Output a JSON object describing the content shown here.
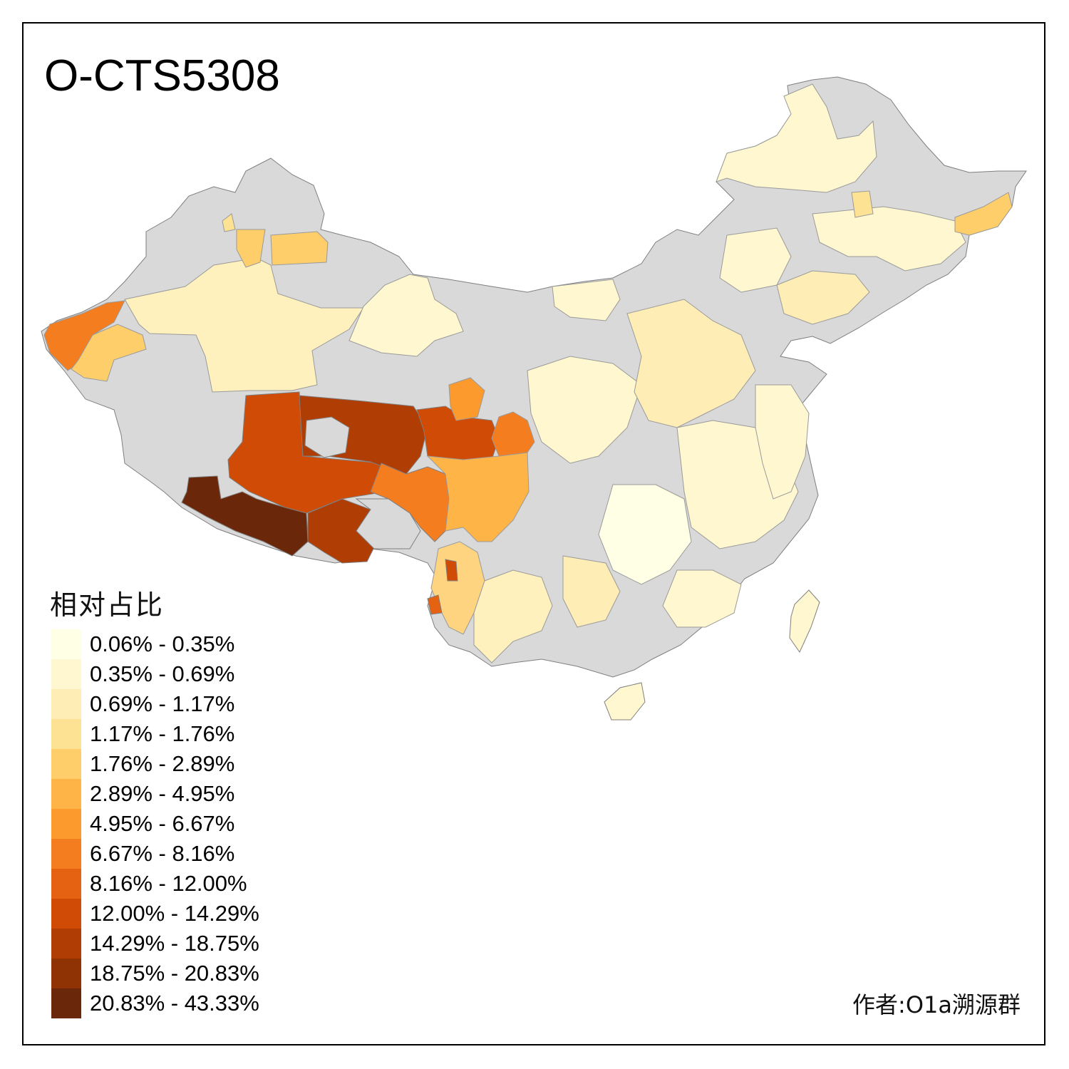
{
  "title": "O-CTS5308",
  "legend": {
    "title": "相对占比",
    "items": [
      {
        "label": "0.06% - 0.35%",
        "color": "#ffffe5"
      },
      {
        "label": "0.35% - 0.69%",
        "color": "#fff7cf"
      },
      {
        "label": "0.69% - 1.17%",
        "color": "#ffedb6"
      },
      {
        "label": "1.17% - 1.76%",
        "color": "#fee293"
      },
      {
        "label": "1.76% - 2.89%",
        "color": "#fece6a"
      },
      {
        "label": "2.89% - 4.95%",
        "color": "#feb447"
      },
      {
        "label": "4.95% - 6.67%",
        "color": "#fd9a2e"
      },
      {
        "label": "6.67% - 8.16%",
        "color": "#f47d20"
      },
      {
        "label": "8.16% - 12.00%",
        "color": "#e66213"
      },
      {
        "label": "12.00% - 14.29%",
        "color": "#cf4b06"
      },
      {
        "label": "14.29% - 18.75%",
        "color": "#b03d04"
      },
      {
        "label": "18.75% - 20.83%",
        "color": "#8f3204"
      },
      {
        "label": "20.83% - 43.33%",
        "color": "#6b2709"
      }
    ]
  },
  "author": "作者:O1a溯源群",
  "colors": {
    "no_data": "#d9d9d9",
    "border": "#808080",
    "background": "#ffffff"
  }
}
